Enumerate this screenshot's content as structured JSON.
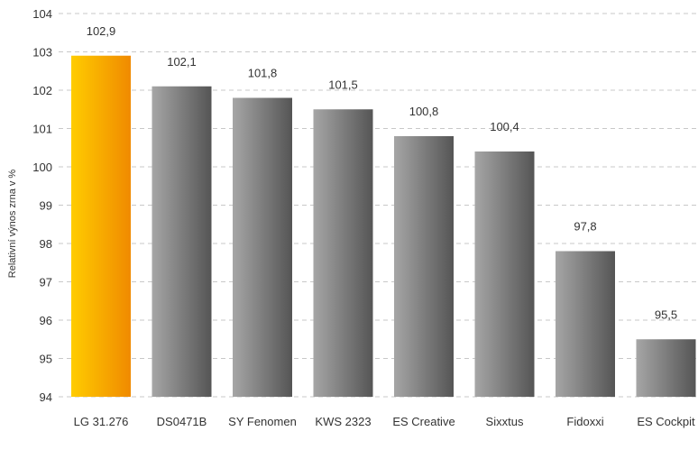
{
  "chart_data": {
    "type": "bar",
    "title": "",
    "xlabel": "",
    "ylabel": "Relativní výnos zrna v %",
    "ylim": [
      94,
      104
    ],
    "yticks": [
      "94",
      "95",
      "96",
      "97",
      "98",
      "99",
      "100",
      "101",
      "102",
      "103",
      "104"
    ],
    "grid": true,
    "categories": [
      "LG 31.276",
      "DS0471B",
      "SY Fenomen",
      "KWS 2323",
      "ES Creative",
      "Sixxtus",
      "Fidoxxi",
      "ES Cockpit"
    ],
    "values": [
      102.9,
      102.1,
      101.8,
      101.5,
      100.8,
      100.4,
      97.8,
      95.5
    ],
    "value_labels": [
      "102,9",
      "102,1",
      "101,8",
      "101,5",
      "100,8",
      "100,4",
      "97,8",
      "95,5"
    ],
    "highlight_index": 0,
    "colors": {
      "highlight_start": "#ffcc00",
      "highlight_end": "#f08a00",
      "bar_start": "#a6a6a6",
      "bar_end": "#555555",
      "grid": "#c8c8c8",
      "text": "#333333"
    }
  }
}
